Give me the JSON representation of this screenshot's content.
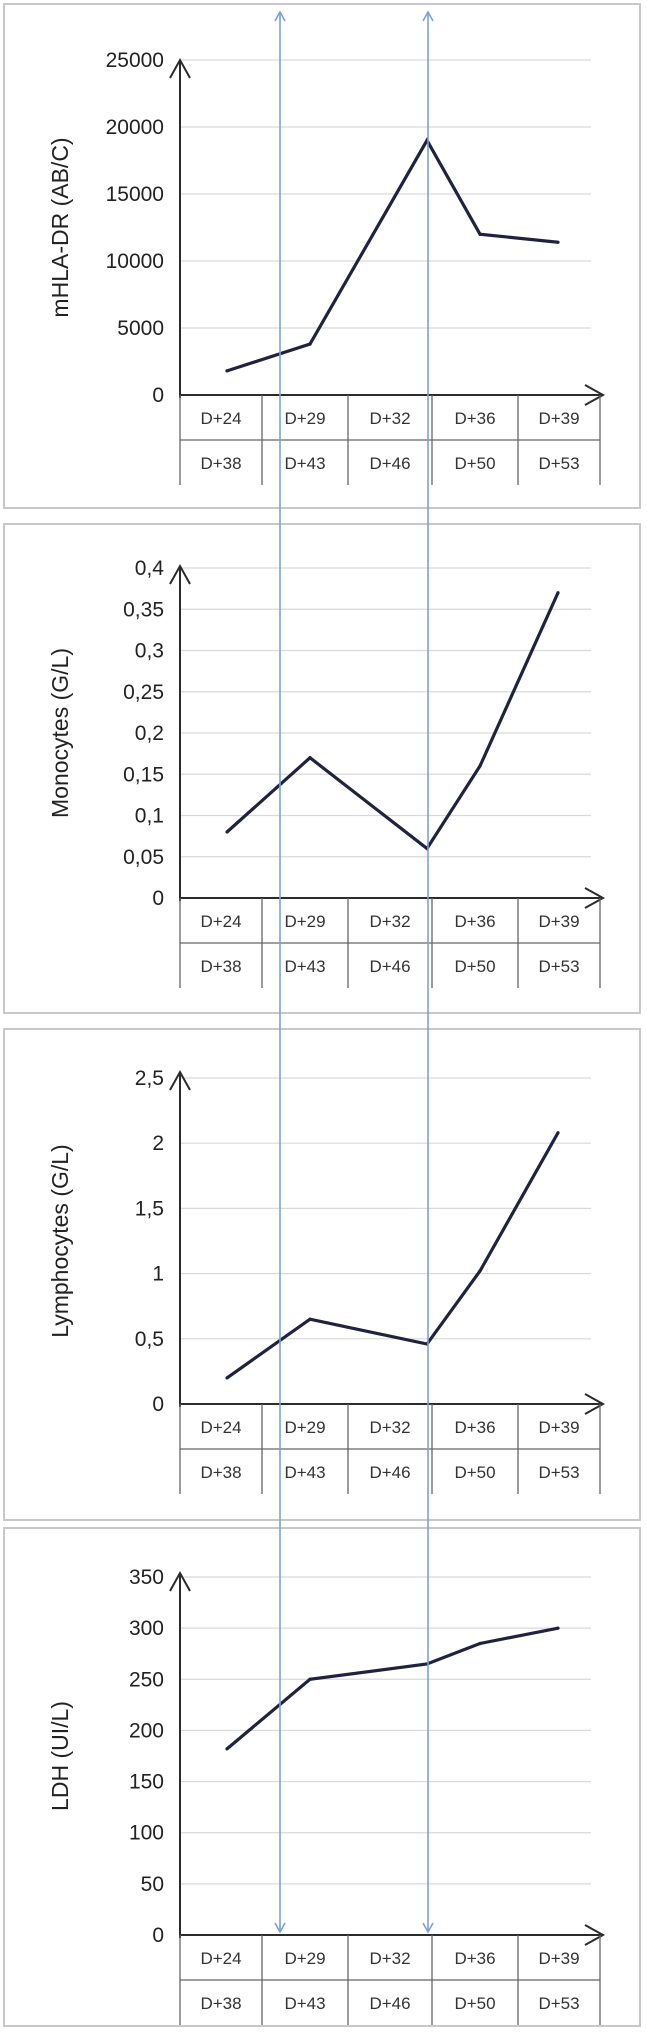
{
  "chart_data": [
    {
      "type": "line",
      "ylabel": "mHLA-DR (AB/C)",
      "ylim": [
        0,
        25000
      ],
      "yticks": [
        "0",
        "5000",
        "10000",
        "15000",
        "20000",
        "25000"
      ],
      "categories_top": [
        "D+24",
        "D+29",
        "D+32",
        "D+36",
        "D+39"
      ],
      "categories_bottom": [
        "D+38",
        "D+43",
        "D+46",
        "D+50",
        "D+53"
      ],
      "values": [
        1800,
        3800,
        19000,
        12000,
        11400
      ],
      "grid": true
    },
    {
      "type": "line",
      "ylabel": "Monocytes (G/L)",
      "ylim": [
        0,
        0.4
      ],
      "yticks": [
        "0",
        "0,05",
        "0,1",
        "0,15",
        "0,2",
        "0,25",
        "0,3",
        "0,35",
        "0,4"
      ],
      "categories_top": [
        "D+24",
        "D+29",
        "D+32",
        "D+36",
        "D+39"
      ],
      "categories_bottom": [
        "D+38",
        "D+43",
        "D+46",
        "D+50",
        "D+53"
      ],
      "values": [
        0.08,
        0.17,
        0.06,
        0.16,
        0.37
      ],
      "grid": true
    },
    {
      "type": "line",
      "ylabel": "Lymphocytes (G/L)",
      "ylim": [
        0,
        2.5
      ],
      "yticks": [
        "0",
        "0,5",
        "1",
        "1,5",
        "2",
        "2,5"
      ],
      "categories_top": [
        "D+24",
        "D+29",
        "D+32",
        "D+36",
        "D+39"
      ],
      "categories_bottom": [
        "D+38",
        "D+43",
        "D+46",
        "D+50",
        "D+53"
      ],
      "values": [
        0.2,
        0.65,
        0.46,
        1.02,
        2.08
      ],
      "grid": true
    },
    {
      "type": "line",
      "ylabel": "LDH (UI/L)",
      "ylim": [
        0,
        350
      ],
      "yticks": [
        "0",
        "50",
        "100",
        "150",
        "200",
        "250",
        "300",
        "350"
      ],
      "categories_top": [
        "D+24",
        "D+29",
        "D+32",
        "D+36",
        "D+39"
      ],
      "categories_bottom": [
        "D+38",
        "D+43",
        "D+46",
        "D+50",
        "D+53"
      ],
      "values": [
        182,
        250,
        265,
        285,
        300
      ],
      "grid": true
    }
  ],
  "colors": {
    "series": "#1f2340",
    "grid": "#d9d9d9",
    "marker_arrow": "#7da0d8"
  }
}
